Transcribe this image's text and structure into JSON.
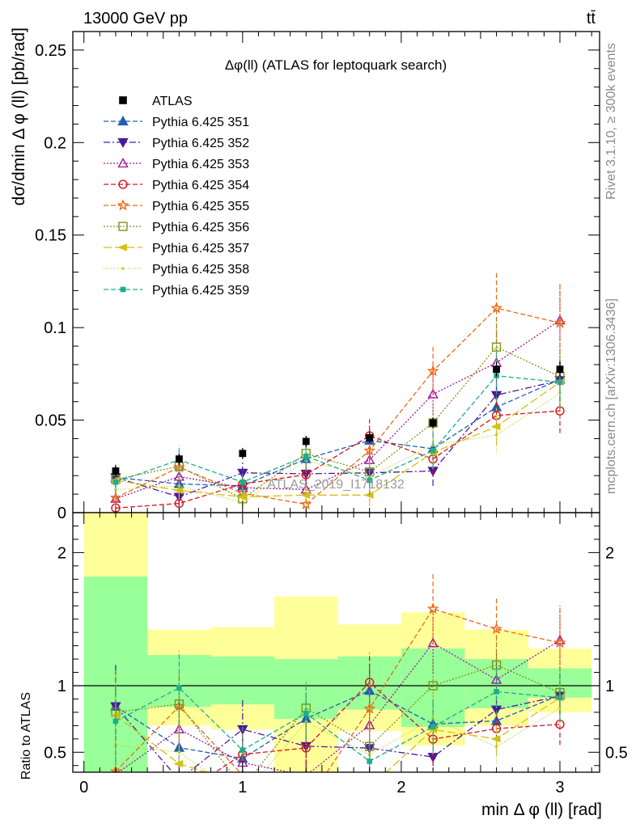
{
  "header": {
    "left": "13000 GeV pp",
    "right": "tt̄"
  },
  "side_texts": {
    "rivet": "Rivet 3.1.10, ≥ 300k events",
    "mcplots": "mcplots.cern.ch [arXiv:1306.3436]"
  },
  "chart_data": {
    "type": "scatter",
    "title": "Δφ(ll) (ATLAS for leptoquark search)",
    "watermark": "ATLAS_2019_I1718132",
    "xlabel": "min Δ φ (ll) [rad]",
    "ylabel": "dσ/dmin Δ φ (ll) [pb/rad]",
    "ratio_ylabel": "Ratio to ATLAS",
    "xlim": [
      -0.07,
      3.25
    ],
    "ylim": [
      0,
      0.26
    ],
    "ratio_ylim": [
      0.35,
      2.3
    ],
    "x_ticks": [
      0,
      1,
      2,
      3
    ],
    "y_ticks": [
      0,
      0.05,
      0.1,
      0.15,
      0.2,
      0.25
    ],
    "ratio_ticks": [
      0.5,
      1,
      2
    ],
    "legend_position": "top-left",
    "grid": false,
    "bins": [
      0,
      0.4,
      0.8,
      1.2,
      1.6,
      2.0,
      2.4,
      2.8,
      3.2
    ],
    "x": [
      0.2,
      0.6,
      1.0,
      1.4,
      1.8,
      2.2,
      2.6,
      3.0
    ],
    "data": {
      "name": "ATLAS",
      "values": [
        0.0225,
        0.029,
        0.032,
        0.0385,
        0.0405,
        0.0485,
        0.0775,
        0.0775
      ],
      "errors": [
        0.003,
        0.003,
        0.003,
        0.003,
        0.003,
        0.003,
        0.004,
        0.004
      ],
      "ratio_band_inner": [
        [
          0.35,
          1.82
        ],
        [
          0.84,
          1.23
        ],
        [
          0.86,
          1.22
        ],
        [
          0.75,
          1.2
        ],
        [
          0.82,
          1.22
        ],
        [
          0.69,
          1.28
        ],
        [
          0.83,
          1.2
        ],
        [
          0.91,
          1.13
        ]
      ],
      "ratio_band_outer": [
        [
          0.35,
          2.3
        ],
        [
          0.7,
          1.42
        ],
        [
          0.67,
          1.44
        ],
        [
          0.35,
          1.67
        ],
        [
          0.66,
          1.46
        ],
        [
          0.55,
          1.55
        ],
        [
          0.7,
          1.42
        ],
        [
          0.8,
          1.28
        ]
      ]
    },
    "series": [
      {
        "name": "Pythia 6.425 351",
        "color": "#1f5fb4",
        "marker": "triangle-up-filled",
        "dash": "6,3",
        "values": [
          0.019,
          0.0155,
          0.0145,
          0.029,
          0.039,
          0.0345,
          0.057,
          0.072
        ],
        "errors": [
          0.007,
          0.006,
          0.006,
          0.007,
          0.008,
          0.009,
          0.011,
          0.012
        ]
      },
      {
        "name": "Pythia 6.425 352",
        "color": "#4a1a9c",
        "marker": "triangle-down-filled",
        "dash": "8,3,2,3",
        "values": [
          0.019,
          0.0085,
          0.0215,
          0.021,
          0.0215,
          0.0225,
          0.0635,
          0.0715
        ],
        "errors": [
          0.007,
          0.005,
          0.007,
          0.006,
          0.007,
          0.008,
          0.011,
          0.012
        ]
      },
      {
        "name": "Pythia 6.425 353",
        "color": "#a0179e",
        "marker": "triangle-up-open",
        "dash": "2,2",
        "values": [
          0.0075,
          0.0195,
          0.0135,
          0.0125,
          0.0285,
          0.064,
          0.081,
          0.104
        ],
        "errors": [
          0.005,
          0.006,
          0.006,
          0.006,
          0.008,
          0.011,
          0.016,
          0.02
        ]
      },
      {
        "name": "Pythia 6.425 354",
        "color": "#d8101e",
        "marker": "circle-open",
        "dash": "6,3",
        "values": [
          0.0025,
          0.005,
          0.0155,
          0.0205,
          0.0415,
          0.029,
          0.0525,
          0.055
        ],
        "errors": [
          0.004,
          0.004,
          0.006,
          0.007,
          0.009,
          0.009,
          0.011,
          0.012
        ]
      },
      {
        "name": "Pythia 6.425 355",
        "color": "#ec6a16",
        "marker": "star-open",
        "dash": "6,3",
        "values": [
          0.008,
          0.0245,
          0.0105,
          0.0045,
          0.0335,
          0.0765,
          0.1105,
          0.1025
        ],
        "errors": [
          0.005,
          0.007,
          0.006,
          0.004,
          0.009,
          0.013,
          0.019,
          0.021
        ]
      },
      {
        "name": "Pythia 6.425 356",
        "color": "#7e9418",
        "marker": "square-open",
        "dash": "2,2",
        "values": [
          0.018,
          0.025,
          0.0075,
          0.032,
          0.022,
          0.0485,
          0.0895,
          0.0735
        ],
        "errors": [
          0.007,
          0.007,
          0.005,
          0.008,
          0.008,
          0.01,
          0.016,
          0.016
        ]
      },
      {
        "name": "Pythia 6.425 357",
        "color": "#d6bf10",
        "marker": "triangle-left-filled",
        "dash": "10,4",
        "values": [
          0.0175,
          0.012,
          0.0085,
          0.0095,
          0.0095,
          0.0325,
          0.0465,
          0.0705
        ],
        "errors": [
          0.007,
          0.005,
          0.005,
          0.005,
          0.006,
          0.009,
          0.01,
          0.014
        ]
      },
      {
        "name": "Pythia 6.425 358",
        "color": "#b8d42c",
        "marker": "dot",
        "dash": "1,2",
        "values": [
          0.0125,
          0.0145,
          0.0055,
          0.028,
          0.0195,
          0.0365,
          0.042,
          0.0645
        ],
        "errors": [
          0.006,
          0.006,
          0.004,
          0.008,
          0.008,
          0.01,
          0.01,
          0.013
        ]
      },
      {
        "name": "Pythia 6.425 359",
        "color": "#1fae8c",
        "marker": "square-filled",
        "dash": "6,3",
        "values": [
          0.0165,
          0.0285,
          0.0165,
          0.0305,
          0.0175,
          0.0335,
          0.074,
          0.0705
        ],
        "errors": [
          0.007,
          0.008,
          0.006,
          0.008,
          0.008,
          0.009,
          0.014,
          0.014
        ]
      }
    ]
  }
}
